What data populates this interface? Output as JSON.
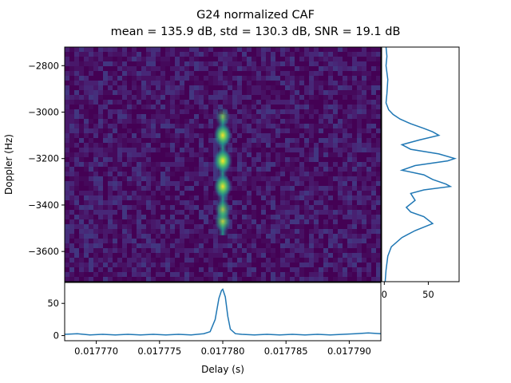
{
  "chart_data": {
    "type": "heatmap",
    "title": "G24 normalized CAF",
    "subtitle": "mean = 135.9 dB, std = 130.3 dB, SNR = 19.1 dB",
    "xlabel": "Delay (s)",
    "ylabel": "Doppler (Hz)",
    "colormap": "viridis",
    "xlim": [
      0.0177675,
      0.0177925
    ],
    "ylim": [
      -3730,
      -2720
    ],
    "x_ticks": [
      0.01777,
      0.017775,
      0.01778,
      0.017785,
      0.01779
    ],
    "x_tick_labels": [
      "0.017770",
      "0.017775",
      "0.017780",
      "0.017785",
      "0.017790"
    ],
    "y_ticks": [
      -2800,
      -3000,
      -3200,
      -3400,
      -3600
    ],
    "y_tick_labels": [
      "−2800",
      "−3000",
      "−3200",
      "−3400",
      "−3600"
    ],
    "peak": {
      "delay": 0.01778,
      "doppler_range": [
        -3530,
        -3010
      ]
    },
    "peak_spots": [
      {
        "doppler": -3100,
        "intensity": 0.95
      },
      {
        "doppler": -3210,
        "intensity": 1.0
      },
      {
        "doppler": -3320,
        "intensity": 0.93
      },
      {
        "doppler": -3470,
        "intensity": 0.7
      },
      {
        "doppler": -3420,
        "intensity": 0.6
      },
      {
        "doppler": -3020,
        "intensity": 0.45
      }
    ],
    "delay_profile": {
      "ylim": [
        -3,
        80
      ],
      "y_ticks": [
        0,
        50
      ],
      "y_tick_labels": [
        "0",
        "50"
      ],
      "x": [
        0.0177675,
        0.0177685,
        0.0177695,
        0.0177705,
        0.0177715,
        0.0177725,
        0.0177735,
        0.0177745,
        0.0177755,
        0.0177765,
        0.0177775,
        0.0177785,
        0.017779,
        0.0177794,
        0.0177797,
        0.0177799,
        0.01778,
        0.0177802,
        0.0177804,
        0.0177806,
        0.017781,
        0.0177815,
        0.0177825,
        0.0177835,
        0.0177845,
        0.0177855,
        0.0177865,
        0.0177875,
        0.0177885,
        0.0177895,
        0.0177905,
        0.0177915,
        0.0177925
      ],
      "y": [
        2,
        3,
        1,
        2,
        1,
        2,
        1,
        2,
        1,
        2,
        1,
        3,
        6,
        25,
        58,
        70,
        72,
        60,
        30,
        10,
        3,
        2,
        1,
        2,
        1,
        2,
        1,
        2,
        1,
        2,
        3,
        4,
        3
      ]
    },
    "doppler_profile": {
      "xlim": [
        -3,
        85
      ],
      "x_ticks": [
        0,
        50
      ],
      "x_tick_labels": [
        "0",
        "50"
      ],
      "doppler": [
        -2720,
        -2760,
        -2800,
        -2860,
        -2920,
        -2960,
        -2990,
        -3010,
        -3030,
        -3050,
        -3070,
        -3085,
        -3100,
        -3120,
        -3140,
        -3160,
        -3180,
        -3200,
        -3210,
        -3230,
        -3250,
        -3270,
        -3290,
        -3310,
        -3320,
        -3335,
        -3350,
        -3380,
        -3410,
        -3430,
        -3450,
        -3480,
        -3510,
        -3540,
        -3580,
        -3620,
        -3680,
        -3730
      ],
      "values": [
        2,
        3,
        2,
        4,
        3,
        2,
        5,
        10,
        18,
        30,
        45,
        55,
        62,
        40,
        20,
        30,
        62,
        80,
        72,
        35,
        20,
        45,
        55,
        70,
        75,
        45,
        30,
        35,
        25,
        30,
        45,
        55,
        35,
        20,
        8,
        4,
        2,
        1
      ]
    }
  }
}
